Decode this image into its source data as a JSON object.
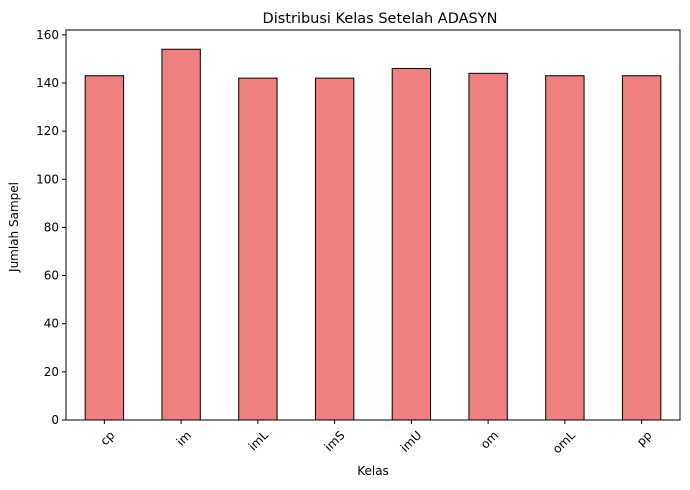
{
  "chart_data": {
    "type": "bar",
    "title": "Distribusi Kelas Setelah ADASYN",
    "xlabel": "Kelas",
    "ylabel": "Jumlah Sampel",
    "categories": [
      "cp",
      "im",
      "imL",
      "imS",
      "imU",
      "om",
      "omL",
      "pp"
    ],
    "values": [
      143,
      154,
      142,
      142,
      146,
      144,
      143,
      143
    ],
    "ylim": [
      0,
      162
    ],
    "yticks": [
      0,
      20,
      40,
      60,
      80,
      100,
      120,
      140,
      160
    ],
    "xtick_rotation": 45,
    "grid": false,
    "bar_color": "#f08080",
    "edge_color": "#000000"
  }
}
